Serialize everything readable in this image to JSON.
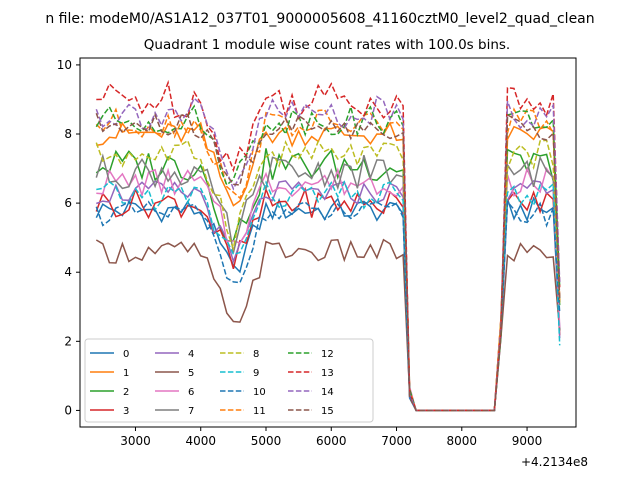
{
  "figure": {
    "suptitle": "n file: modeM0/AS1A12_037T01_9000005608_41160cztM0_level2_quad_clean",
    "title": "Quadrant 1 module wise count rates with 100.0s bins.",
    "x_offset_label": "+4.2134e8"
  },
  "chart_data": {
    "type": "line",
    "title": "Quadrant 1 module wise count rates with 100.0s bins.",
    "xlabel": "",
    "ylabel": "",
    "x_offset": 421340000,
    "xlim": [
      2150,
      9750
    ],
    "ylim": [
      -0.48,
      10.2
    ],
    "xticks": [
      3000,
      4000,
      5000,
      6000,
      7000,
      8000,
      9000
    ],
    "yticks": [
      0,
      2,
      4,
      6,
      8,
      10
    ],
    "legend_position": "lower-left",
    "series": [
      {
        "name": "0",
        "color": "#1f77b4",
        "style": "solid",
        "base": 5.8,
        "amp": 0.25
      },
      {
        "name": "1",
        "color": "#ff7f0e",
        "style": "solid",
        "base": 8.0,
        "amp": 0.25
      },
      {
        "name": "2",
        "color": "#2ca02c",
        "style": "solid",
        "base": 7.1,
        "amp": 0.35
      },
      {
        "name": "3",
        "color": "#d62728",
        "style": "solid",
        "base": 6.0,
        "amp": 0.3
      },
      {
        "name": "4",
        "color": "#9467bd",
        "style": "solid",
        "base": 6.3,
        "amp": 0.25
      },
      {
        "name": "5",
        "color": "#8c564b",
        "style": "solid",
        "base": 4.6,
        "amp": 0.25
      },
      {
        "name": "6",
        "color": "#e377c2",
        "style": "solid",
        "base": 6.6,
        "amp": 0.3
      },
      {
        "name": "7",
        "color": "#7f7f7f",
        "style": "solid",
        "base": 6.9,
        "amp": 0.35
      },
      {
        "name": "8",
        "color": "#bcbd22",
        "style": "dashed",
        "base": 7.4,
        "amp": 0.3
      },
      {
        "name": "9",
        "color": "#17becf",
        "style": "dashed",
        "base": 6.2,
        "amp": 0.3
      },
      {
        "name": "10",
        "color": "#1f77b4",
        "style": "dashed",
        "base": 5.7,
        "amp": 0.25
      },
      {
        "name": "11",
        "color": "#ff7f0e",
        "style": "dashed",
        "base": 8.3,
        "amp": 0.3
      },
      {
        "name": "12",
        "color": "#2ca02c",
        "style": "dashed",
        "base": 8.4,
        "amp": 0.3
      },
      {
        "name": "13",
        "color": "#d62728",
        "style": "dashed",
        "base": 9.0,
        "amp": 0.4
      },
      {
        "name": "14",
        "color": "#9467bd",
        "style": "dashed",
        "base": 8.6,
        "amp": 0.35
      },
      {
        "name": "15",
        "color": "#8c564b",
        "style": "dashed",
        "base": 8.2,
        "amp": 0.3
      }
    ],
    "profile": {
      "x_start": 2400,
      "step": 100,
      "gap_start": 7200,
      "gap_end": 8500,
      "gap_value": 0.0,
      "end_x": 9500,
      "dip_centre": 4500,
      "dip_depth": 2.3
    }
  }
}
